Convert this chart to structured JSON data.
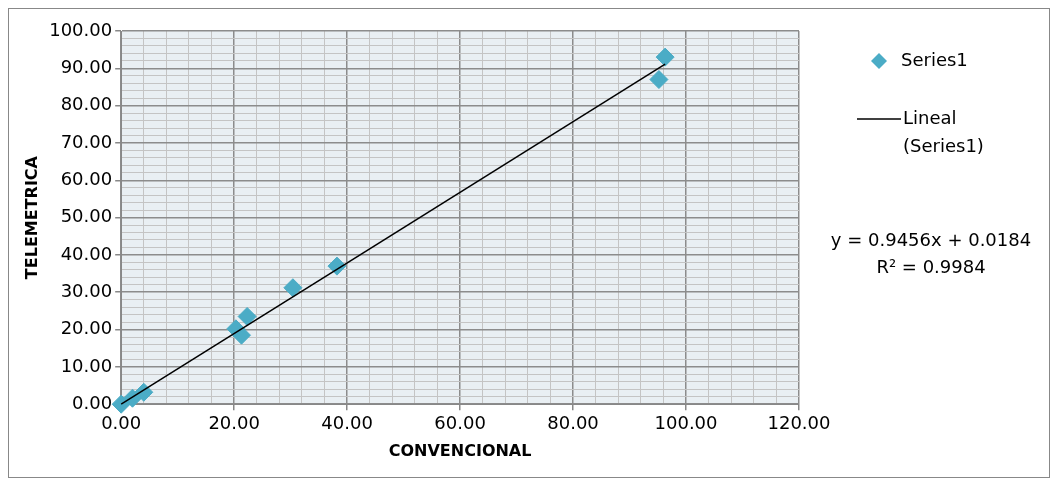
{
  "chart_data": {
    "type": "scatter",
    "xlabel": "CONVENCIONAL",
    "ylabel": "TELEMETRICA",
    "x": [
      0,
      2,
      4,
      20.3,
      21.3,
      22.3,
      30.4,
      38.2,
      95.2,
      96.3
    ],
    "series": [
      {
        "name": "Series1",
        "color": "#4bacc6",
        "values": [
          0,
          1.6,
          3.2,
          20.2,
          18.5,
          23.5,
          31.2,
          37,
          87,
          93
        ]
      },
      {
        "name": "Lineal (Series1)",
        "type": "line",
        "marker": "none",
        "color": "#000000",
        "x": [
          0,
          96.3
        ],
        "values": [
          0,
          91.1
        ]
      }
    ],
    "marker": "diamond",
    "legend": "right",
    "grid": true,
    "annotations": [
      "y = 0.9456x + 0.0184",
      "R² = 0.9984"
    ],
    "xlim": [
      0,
      120
    ],
    "xticks": [
      {
        "value": 0,
        "label": "0.00"
      },
      {
        "value": 4,
        "label": null
      },
      {
        "value": 8,
        "label": null
      },
      {
        "value": 12,
        "label": null
      },
      {
        "value": 16,
        "label": null
      },
      {
        "value": 20,
        "label": "20.00"
      },
      {
        "value": 24,
        "label": null
      },
      {
        "value": 28,
        "label": null
      },
      {
        "value": 32,
        "label": null
      },
      {
        "value": 36,
        "label": null
      },
      {
        "value": 40,
        "label": "40.00"
      },
      {
        "value": 44,
        "label": null
      },
      {
        "value": 48,
        "label": null
      },
      {
        "value": 52,
        "label": null
      },
      {
        "value": 56,
        "label": null
      },
      {
        "value": 60,
        "label": "60.00"
      },
      {
        "value": 64,
        "label": null
      },
      {
        "value": 68,
        "label": null
      },
      {
        "value": 72,
        "label": null
      },
      {
        "value": 76,
        "label": null
      },
      {
        "value": 80,
        "label": "80.00"
      },
      {
        "value": 84,
        "label": null
      },
      {
        "value": 88,
        "label": null
      },
      {
        "value": 92,
        "label": null
      },
      {
        "value": 96,
        "label": null
      },
      {
        "value": 100,
        "label": "100.00"
      },
      {
        "value": 104,
        "label": null
      },
      {
        "value": 108,
        "label": null
      },
      {
        "value": 112,
        "label": null
      },
      {
        "value": 116,
        "label": null
      },
      {
        "value": 120,
        "label": "120.00"
      }
    ],
    "ylim": [
      0,
      100
    ],
    "yticks": [
      {
        "value": 0,
        "label": "0.00"
      },
      {
        "value": 2,
        "label": null
      },
      {
        "value": 4,
        "label": null
      },
      {
        "value": 6,
        "label": null
      },
      {
        "value": 8,
        "label": null
      },
      {
        "value": 10,
        "label": "10.00"
      },
      {
        "value": 12,
        "label": null
      },
      {
        "value": 14,
        "label": null
      },
      {
        "value": 16,
        "label": null
      },
      {
        "value": 18,
        "label": null
      },
      {
        "value": 20,
        "label": "20.00"
      },
      {
        "value": 22,
        "label": null
      },
      {
        "value": 24,
        "label": null
      },
      {
        "value": 26,
        "label": null
      },
      {
        "value": 28,
        "label": null
      },
      {
        "value": 30,
        "label": "30.00"
      },
      {
        "value": 32,
        "label": null
      },
      {
        "value": 34,
        "label": null
      },
      {
        "value": 36,
        "label": null
      },
      {
        "value": 38,
        "label": null
      },
      {
        "value": 40,
        "label": "40.00"
      },
      {
        "value": 42,
        "label": null
      },
      {
        "value": 44,
        "label": null
      },
      {
        "value": 46,
        "label": null
      },
      {
        "value": 48,
        "label": null
      },
      {
        "value": 50,
        "label": "50.00"
      },
      {
        "value": 52,
        "label": null
      },
      {
        "value": 54,
        "label": null
      },
      {
        "value": 56,
        "label": null
      },
      {
        "value": 58,
        "label": null
      },
      {
        "value": 60,
        "label": "60.00"
      },
      {
        "value": 62,
        "label": null
      },
      {
        "value": 64,
        "label": null
      },
      {
        "value": 66,
        "label": null
      },
      {
        "value": 68,
        "label": null
      },
      {
        "value": 70,
        "label": "70.00"
      },
      {
        "value": 72,
        "label": null
      },
      {
        "value": 74,
        "label": null
      },
      {
        "value": 76,
        "label": null
      },
      {
        "value": 78,
        "label": null
      },
      {
        "value": 80,
        "label": "80.00"
      },
      {
        "value": 82,
        "label": null
      },
      {
        "value": 84,
        "label": null
      },
      {
        "value": 86,
        "label": null
      },
      {
        "value": 88,
        "label": null
      },
      {
        "value": 90,
        "label": "90.00"
      },
      {
        "value": 92,
        "label": null
      },
      {
        "value": 94,
        "label": null
      },
      {
        "value": 96,
        "label": null
      },
      {
        "value": 98,
        "label": null
      },
      {
        "value": 100,
        "label": "100.00"
      }
    ]
  }
}
